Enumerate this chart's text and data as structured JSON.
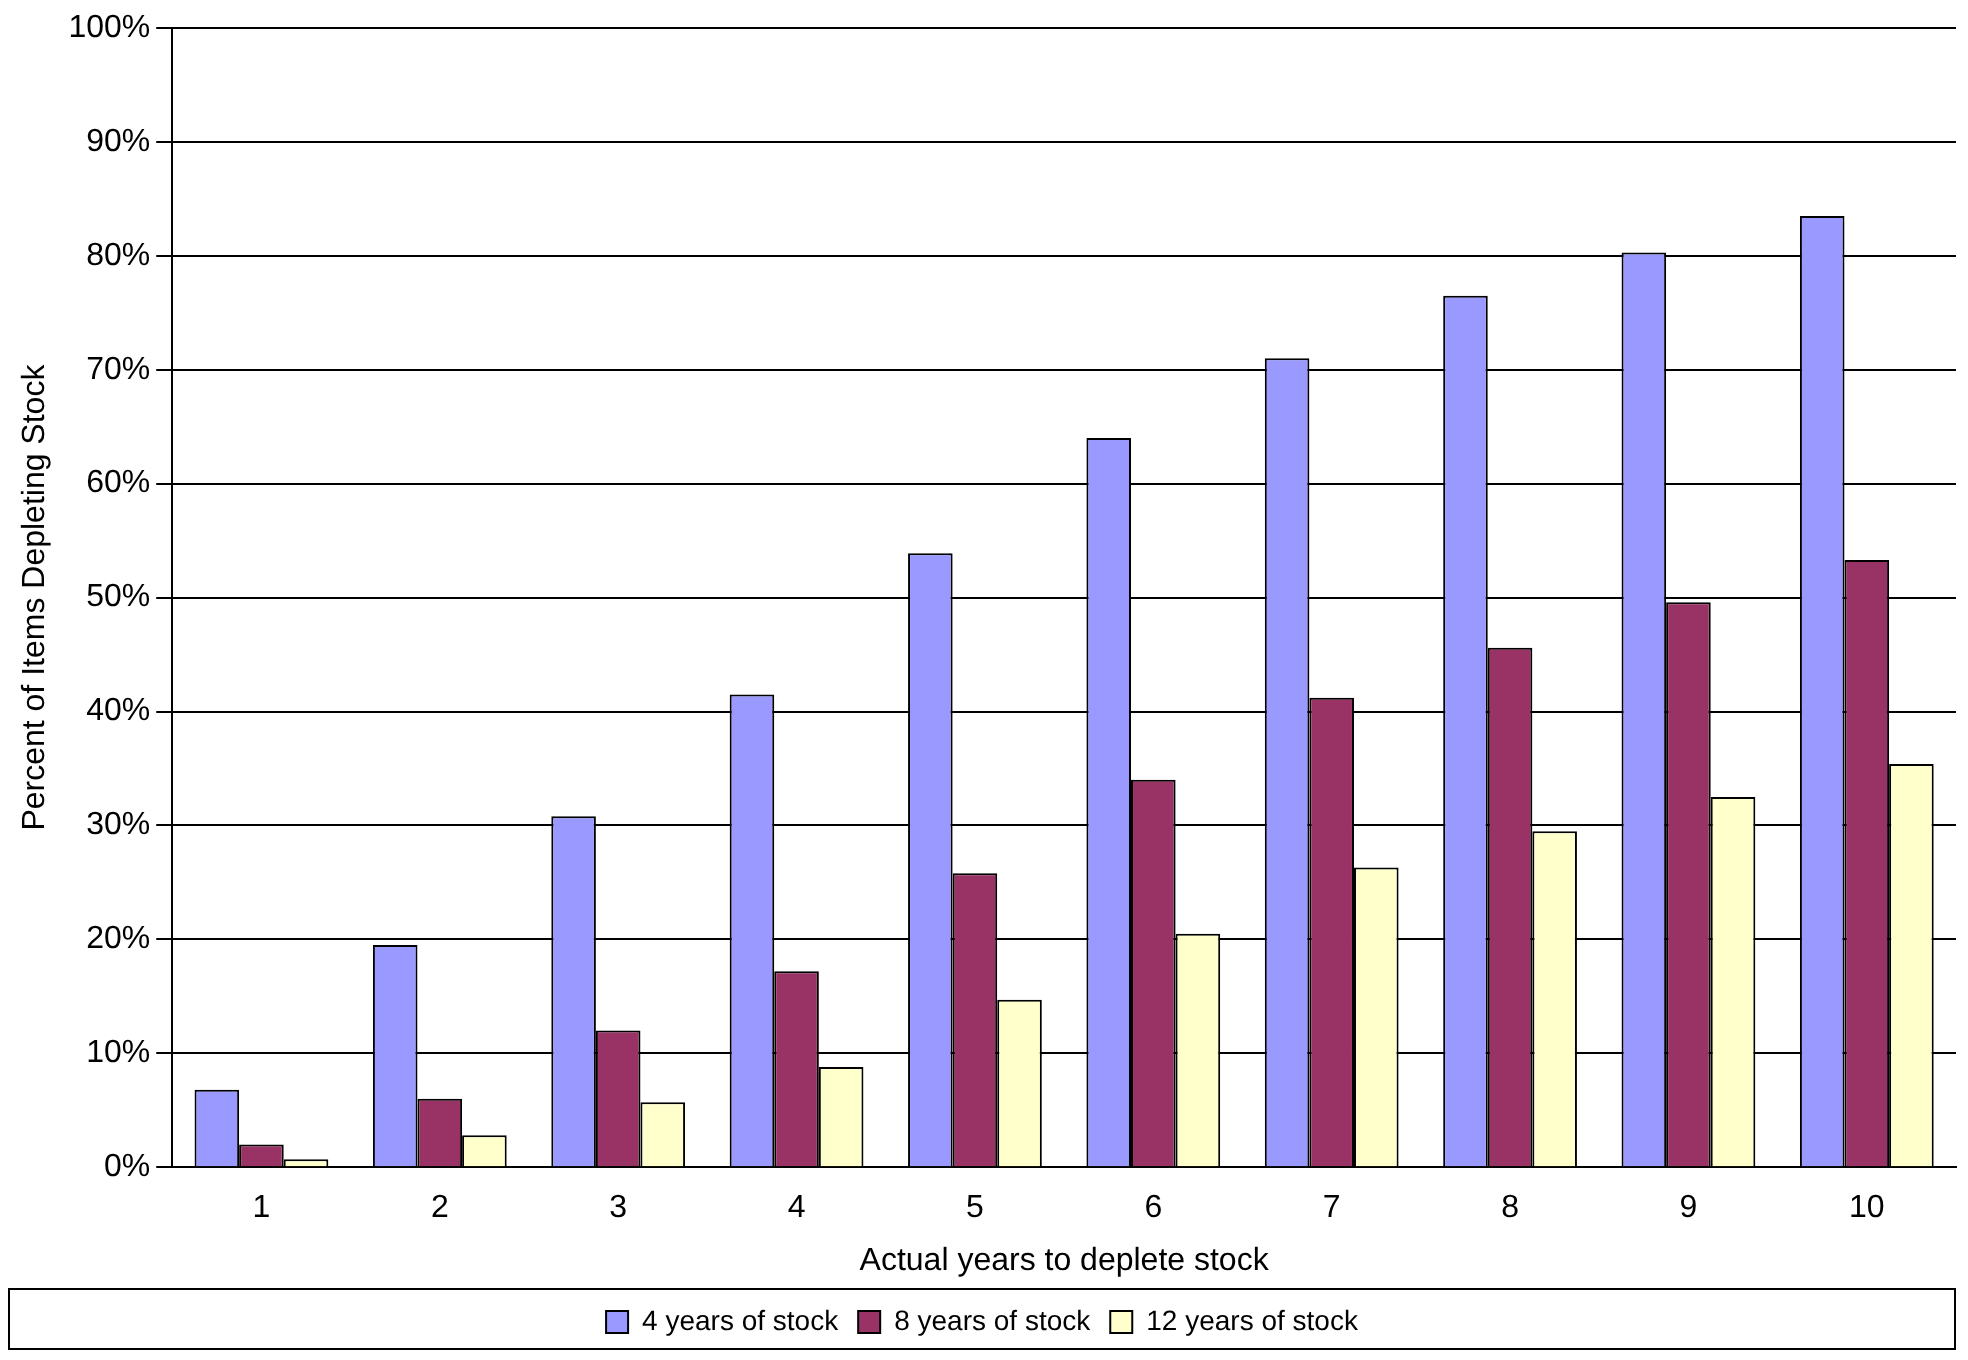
{
  "chart_data": {
    "type": "bar",
    "xlabel": "Actual years to deplete stock",
    "ylabel": "Percent of Items Depleting Stock",
    "categories": [
      "1",
      "2",
      "3",
      "4",
      "5",
      "6",
      "7",
      "8",
      "9",
      "10"
    ],
    "series": [
      {
        "name": "4 years of stock",
        "color": "#9999ff",
        "values": [
          6.8,
          19.5,
          30.8,
          41.5,
          53.9,
          64,
          71,
          76.5,
          80.3,
          83.5
        ]
      },
      {
        "name": "8 years of stock",
        "color": "#993366",
        "values": [
          2,
          6,
          12,
          17.2,
          25.8,
          34,
          41.2,
          45.6,
          49.6,
          53.3
        ]
      },
      {
        "name": "12 years of stock",
        "color": "#ffffcc",
        "values": [
          0.7,
          2.8,
          5.7,
          8.8,
          14.7,
          20.5,
          26.3,
          29.5,
          32.5,
          35.4
        ]
      }
    ],
    "ylim": [
      0,
      100
    ],
    "yticks": [
      {
        "value": 0,
        "label": "0%"
      },
      {
        "value": 10,
        "label": "10%"
      },
      {
        "value": 20,
        "label": "20%"
      },
      {
        "value": 30,
        "label": "30%"
      },
      {
        "value": 40,
        "label": "40%"
      },
      {
        "value": 50,
        "label": "50%"
      },
      {
        "value": 60,
        "label": "60%"
      },
      {
        "value": 70,
        "label": "70%"
      },
      {
        "value": 80,
        "label": "80%"
      },
      {
        "value": 90,
        "label": "90%"
      },
      {
        "value": 100,
        "label": "100%"
      }
    ],
    "grid": "y",
    "legend": "bottom"
  }
}
